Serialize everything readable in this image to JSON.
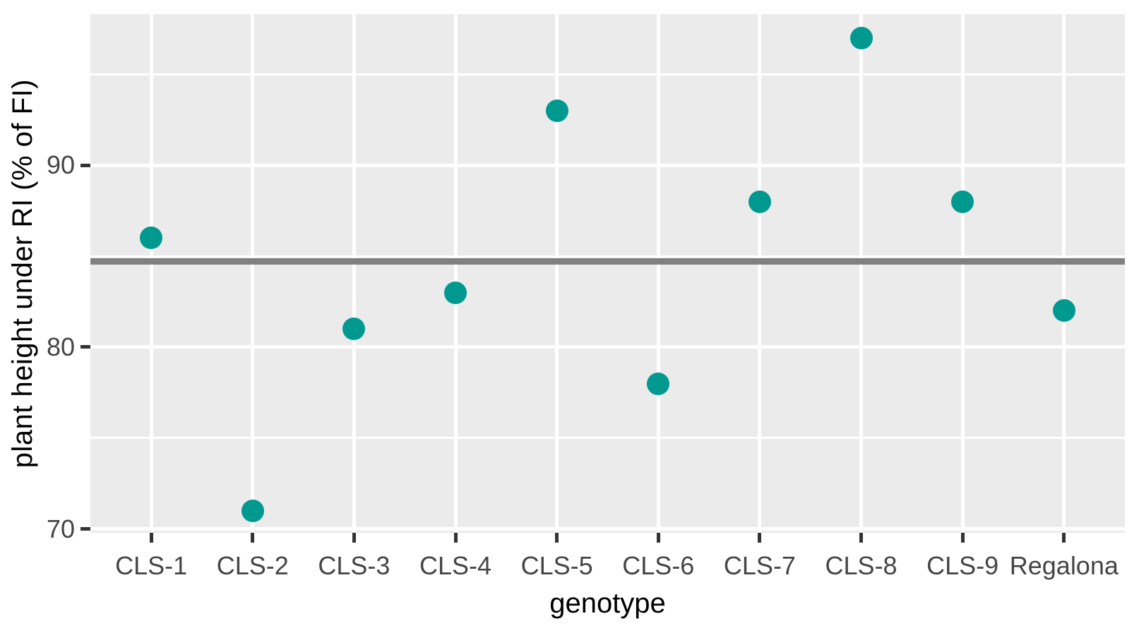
{
  "chart_data": {
    "type": "scatter",
    "xlabel": "genotype",
    "ylabel": "plant height under RI  (% of FI)",
    "categories": [
      "CLS-1",
      "CLS-2",
      "CLS-3",
      "CLS-4",
      "CLS-5",
      "CLS-6",
      "CLS-7",
      "CLS-8",
      "CLS-9",
      "Regalona"
    ],
    "values": [
      86,
      71,
      81,
      83,
      93,
      78,
      88,
      97,
      88,
      82
    ],
    "reference_line": {
      "value": 84.7
    },
    "yticks": [
      70,
      80,
      90
    ],
    "yticks_minor": [
      75,
      85,
      95
    ],
    "ylim": [
      69.8,
      98.3
    ],
    "grid": true,
    "legend": "none",
    "colors": {
      "point": "#009990",
      "reference_line": "#808080",
      "panel_background": "#EBEBEB",
      "gridline": "#FFFFFF",
      "tick_label": "#454545",
      "tick_mark": "#333333",
      "axis_title": "#000000"
    }
  }
}
